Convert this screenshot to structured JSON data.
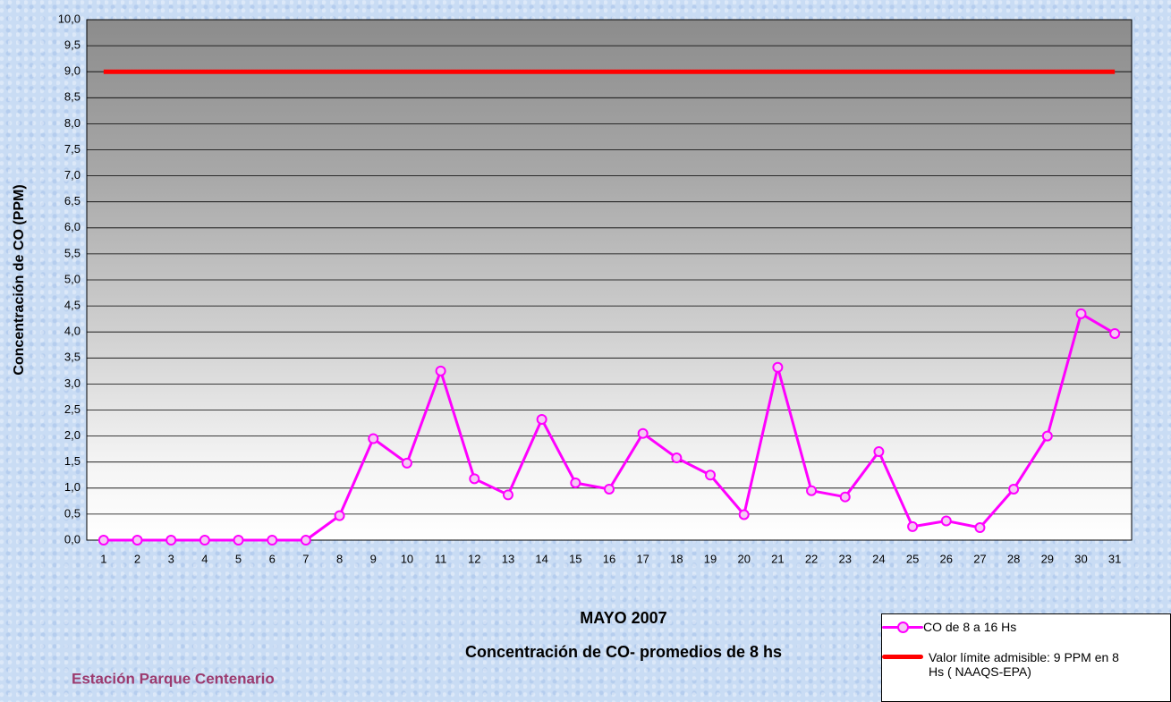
{
  "chart_data": {
    "type": "line",
    "y_label": "Concentración de CO (PPM)",
    "x_title": "MAYO 2007",
    "subtitle": "Concentración de CO- promedios de 8 hs",
    "station": "Estación Parque Centenario",
    "categories": [
      "1",
      "2",
      "3",
      "4",
      "5",
      "6",
      "7",
      "8",
      "9",
      "10",
      "11",
      "12",
      "13",
      "14",
      "15",
      "16",
      "17",
      "18",
      "19",
      "20",
      "21",
      "22",
      "23",
      "24",
      "25",
      "26",
      "27",
      "28",
      "29",
      "30",
      "31"
    ],
    "series": [
      {
        "name": "CO de 8 a 16 Hs",
        "color": "#ff00ff",
        "marker": "circle",
        "values": [
          0,
          0,
          0,
          0,
          0,
          0,
          0,
          0.47,
          1.95,
          1.48,
          3.25,
          1.18,
          0.87,
          2.32,
          1.1,
          0.98,
          2.05,
          1.58,
          1.25,
          0.49,
          3.32,
          0.95,
          0.83,
          1.7,
          0.26,
          0.37,
          0.24,
          0.98,
          2.0,
          4.35,
          3.97
        ]
      },
      {
        "name": "Valor límite admisible: 9 PPM en 8 Hs ( NAAQS-EPA)",
        "color": "#ff0000",
        "values": [
          9,
          9,
          9,
          9,
          9,
          9,
          9,
          9,
          9,
          9,
          9,
          9,
          9,
          9,
          9,
          9,
          9,
          9,
          9,
          9,
          9,
          9,
          9,
          9,
          9,
          9,
          9,
          9,
          9,
          9,
          9
        ]
      }
    ],
    "ylim": [
      0,
      10
    ],
    "yticks": [
      {
        "value": 0,
        "label": "0,0"
      },
      {
        "value": 0.5,
        "label": "0,5"
      },
      {
        "value": 1,
        "label": "1,0"
      },
      {
        "value": 1.5,
        "label": "1,5"
      },
      {
        "value": 2,
        "label": "2,0"
      },
      {
        "value": 2.5,
        "label": "2,5"
      },
      {
        "value": 3,
        "label": "3,0"
      },
      {
        "value": 3.5,
        "label": "3,5"
      },
      {
        "value": 4,
        "label": "4,0"
      },
      {
        "value": 4.5,
        "label": "4,5"
      },
      {
        "value": 5,
        "label": "5,0"
      },
      {
        "value": 5.5,
        "label": "5,5"
      },
      {
        "value": 6,
        "label": "6,0"
      },
      {
        "value": 6.5,
        "label": "6,5"
      },
      {
        "value": 7,
        "label": "7,0"
      },
      {
        "value": 7.5,
        "label": "7,5"
      },
      {
        "value": 8,
        "label": "8,0"
      },
      {
        "value": 8.5,
        "label": "8,5"
      },
      {
        "value": 9,
        "label": "9,0"
      },
      {
        "value": 9.5,
        "label": "9,5"
      },
      {
        "value": 10,
        "label": "10,0"
      }
    ],
    "grid": true
  }
}
